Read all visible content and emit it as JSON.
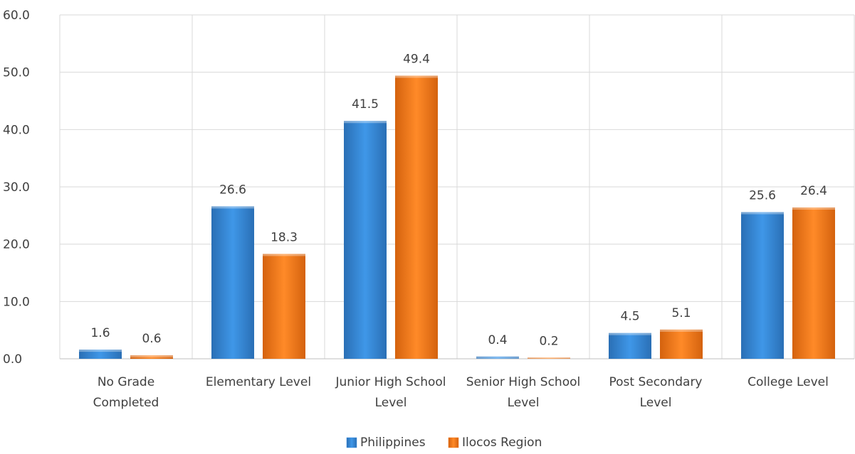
{
  "chart_data": {
    "type": "bar",
    "categories": [
      [
        "No Grade",
        "Completed"
      ],
      [
        "Elementary Level"
      ],
      [
        "Junior High School",
        "Level"
      ],
      [
        "Senior High School",
        "Level"
      ],
      [
        "Post Secondary",
        "Level"
      ],
      [
        "College Level"
      ]
    ],
    "series": [
      {
        "name": "Philippines",
        "values": [
          1.6,
          26.6,
          41.5,
          0.4,
          4.5,
          25.6
        ],
        "color": "#3a8ee0"
      },
      {
        "name": "Ilocos Region",
        "values": [
          0.6,
          18.3,
          49.4,
          0.2,
          5.1,
          26.4
        ],
        "color": "#f47a1c"
      }
    ],
    "ylim": [
      0,
      60
    ],
    "yticks": [
      "0.0",
      "10.0",
      "20.0",
      "30.0",
      "40.0",
      "50.0",
      "60.0"
    ],
    "grid": true,
    "legend_position": "bottom-center",
    "data_labels": true,
    "value_format": "0.0"
  }
}
